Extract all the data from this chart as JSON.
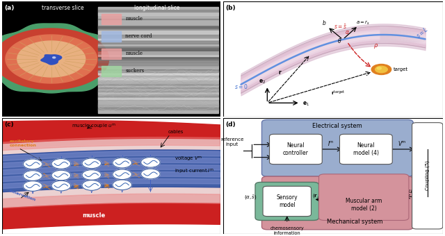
{
  "fig_width": 6.4,
  "fig_height": 3.4,
  "panel_a_label": "(a)",
  "panel_b_label": "(b)",
  "panel_c_label": "(c)",
  "panel_d_label": "(d)",
  "panel_a_title_left": "transverse slice",
  "panel_a_title_right": "longitudinal slice",
  "panel_a_legend": [
    "muscle",
    "nerve cord",
    "muscle",
    "suckers"
  ],
  "panel_a_legend_colors": [
    "#e8a0a0",
    "#a0b8e0",
    "#e8a0a0",
    "#a0d4a0"
  ],
  "electrical_bg_color": "#9aadce",
  "mechanical_bg_color": "#d4939c",
  "sensory_bg_color": "#7ab89a",
  "box_white": "#ffffff",
  "d_title_elec": "Electrical system",
  "d_title_mech": "Mechanical system",
  "d_box1": "Neural\ncontroller",
  "d_box2": "Neural\nmodel (4)",
  "d_box3": "Sensory\nmodel",
  "d_box4": "Muscular arm\nmodel (2)",
  "d_label_coupling": "Coupling (5)"
}
